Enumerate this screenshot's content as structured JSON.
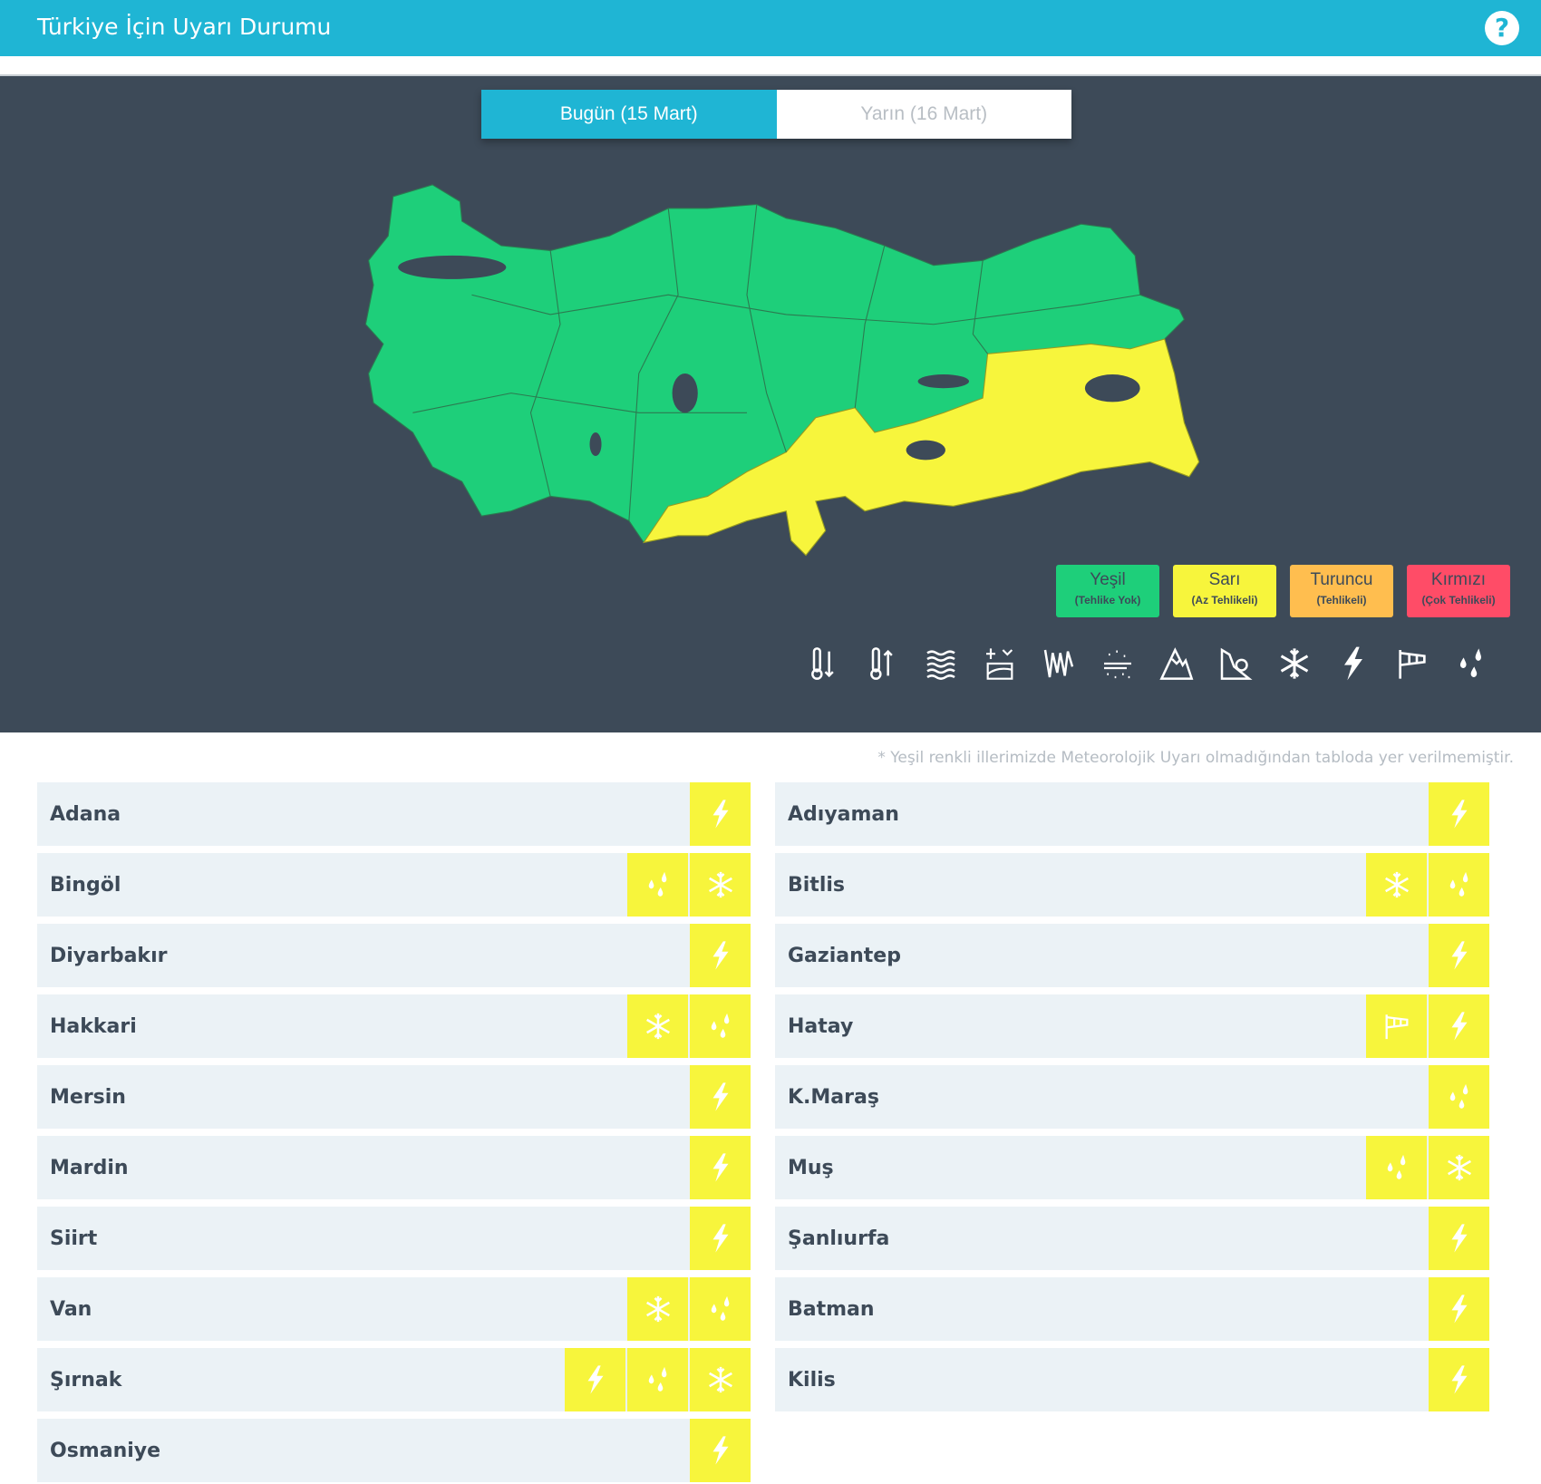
{
  "header": {
    "title": "Türkiye İçin Uyarı Durumu",
    "help_icon": "question-circle-icon"
  },
  "tabs": [
    {
      "label": "Bugün (15 Mart)",
      "active": true
    },
    {
      "label": "Yarın (16 Mart)",
      "active": false
    }
  ],
  "map": {
    "colors": {
      "green": "#1ecf7a",
      "yellow": "#f7f53c",
      "border": "#2c7a50",
      "lake": "#3d4a58"
    }
  },
  "legend": [
    {
      "label": "Yeşil",
      "sub": "(Tehlike Yok)",
      "color": "#1ecf7a"
    },
    {
      "label": "Sarı",
      "sub": "(Az Tehlikeli)",
      "color": "#f7f53c"
    },
    {
      "label": "Turuncu",
      "sub": "(Tehlikeli)",
      "color": "#ffbe4f"
    },
    {
      "label": "Kırmızı",
      "sub": "(Çok Tehlikeli)",
      "color": "#ff4c67"
    }
  ],
  "hazard_icons": [
    "cold-icon",
    "hot-icon",
    "fog-icon",
    "snow-melt-icon",
    "icicle-icon",
    "dust-icon",
    "avalanche-icon",
    "landslide-icon",
    "snow-icon",
    "lightning-icon",
    "wind-icon",
    "rain-icon"
  ],
  "note": "* Yeşil renkli illerimizde Meteorolojik Uyarı olmadığından tabloda yer verilmemiştir.",
  "provinces_left": [
    {
      "name": "Adana",
      "icons": [
        "lightning"
      ]
    },
    {
      "name": "Bingöl",
      "icons": [
        "rain",
        "snow"
      ]
    },
    {
      "name": "Diyarbakır",
      "icons": [
        "lightning"
      ]
    },
    {
      "name": "Hakkari",
      "icons": [
        "snow",
        "rain"
      ]
    },
    {
      "name": "Mersin",
      "icons": [
        "lightning"
      ]
    },
    {
      "name": "Mardin",
      "icons": [
        "lightning"
      ]
    },
    {
      "name": "Siirt",
      "icons": [
        "lightning"
      ]
    },
    {
      "name": "Van",
      "icons": [
        "snow",
        "rain"
      ]
    },
    {
      "name": "Şırnak",
      "icons": [
        "lightning",
        "rain",
        "snow"
      ]
    },
    {
      "name": "Osmaniye",
      "icons": [
        "lightning"
      ]
    }
  ],
  "provinces_right": [
    {
      "name": "Adıyaman",
      "icons": [
        "lightning"
      ]
    },
    {
      "name": "Bitlis",
      "icons": [
        "snow",
        "rain"
      ]
    },
    {
      "name": "Gaziantep",
      "icons": [
        "lightning"
      ]
    },
    {
      "name": "Hatay",
      "icons": [
        "wind",
        "lightning"
      ]
    },
    {
      "name": "K.Maraş",
      "icons": [
        "rain"
      ]
    },
    {
      "name": "Muş",
      "icons": [
        "rain",
        "snow"
      ]
    },
    {
      "name": "Şanlıurfa",
      "icons": [
        "lightning"
      ]
    },
    {
      "name": "Batman",
      "icons": [
        "lightning"
      ]
    },
    {
      "name": "Kilis",
      "icons": [
        "lightning"
      ]
    }
  ]
}
